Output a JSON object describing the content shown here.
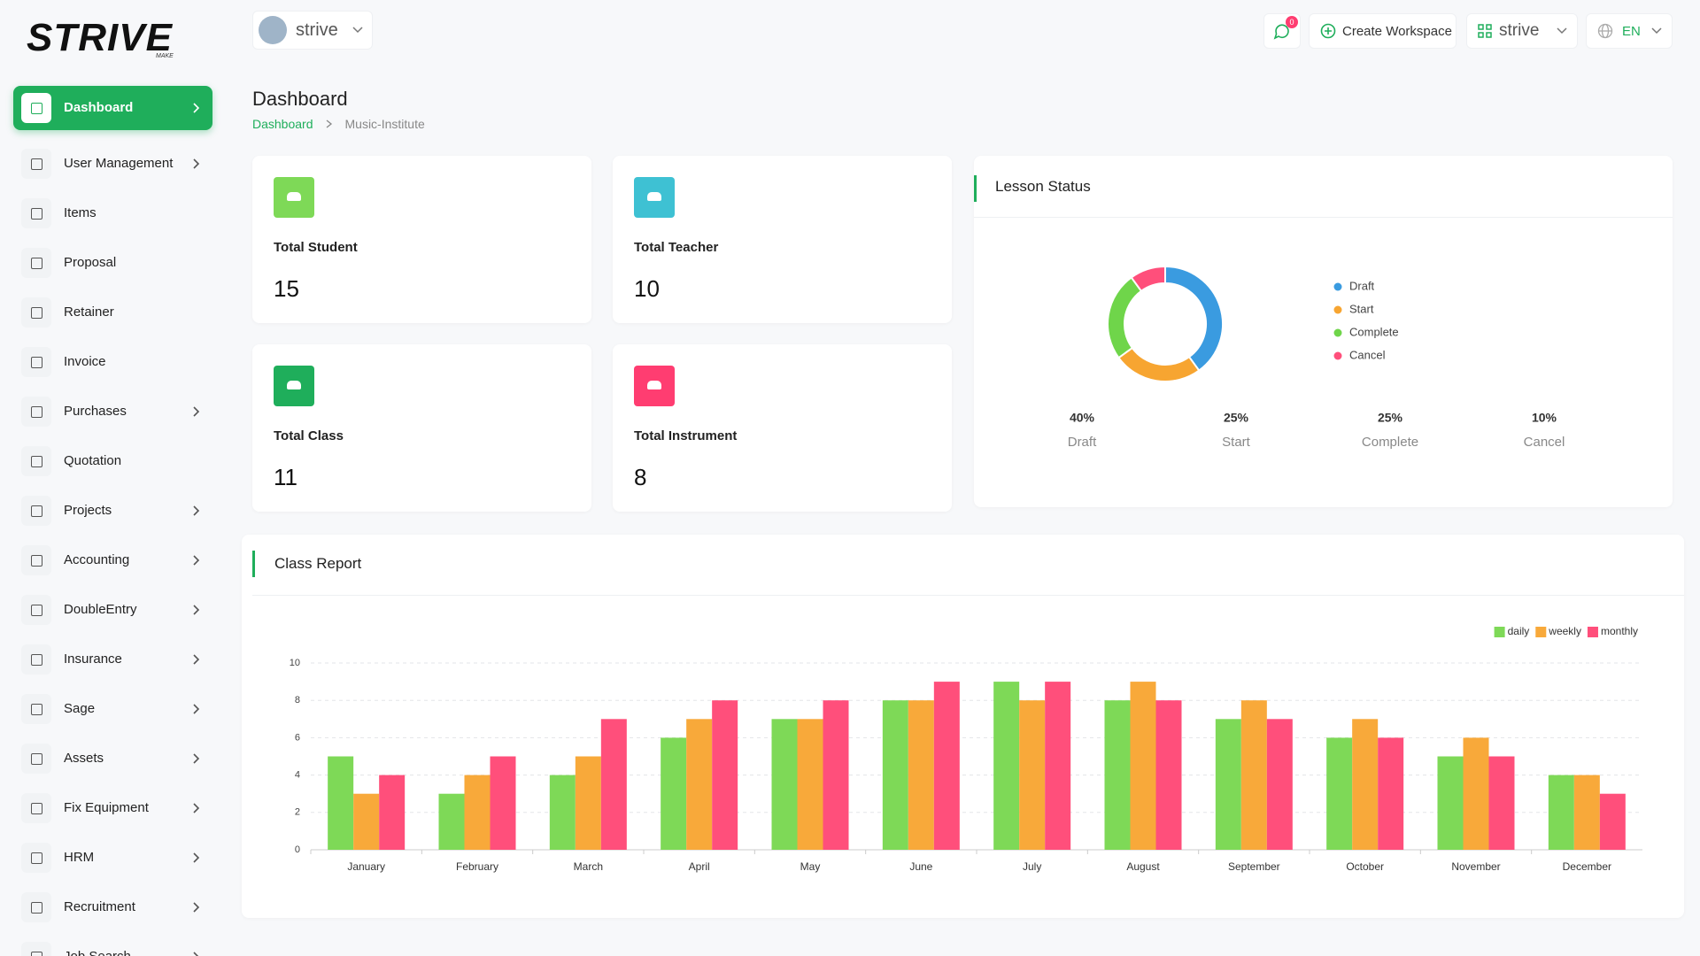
{
  "brand": {
    "logo": "STRIVE",
    "tagline": "MAKE"
  },
  "header": {
    "workspace": "strive",
    "notifications": 0,
    "create_workspace": "Create Workspace",
    "workspace_menu": "strive",
    "language": "EN"
  },
  "sidebar": {
    "items": [
      {
        "label": "Dashboard",
        "active": true,
        "submenu": true
      },
      {
        "label": "User Management",
        "submenu": true
      },
      {
        "label": "Items",
        "submenu": false
      },
      {
        "label": "Proposal",
        "submenu": false
      },
      {
        "label": "Retainer",
        "submenu": false
      },
      {
        "label": "Invoice",
        "submenu": false
      },
      {
        "label": "Purchases",
        "submenu": true
      },
      {
        "label": "Quotation",
        "submenu": false
      },
      {
        "label": "Projects",
        "submenu": true
      },
      {
        "label": "Accounting",
        "submenu": true
      },
      {
        "label": "DoubleEntry",
        "submenu": true
      },
      {
        "label": "Insurance",
        "submenu": true
      },
      {
        "label": "Sage",
        "submenu": true
      },
      {
        "label": "Assets",
        "submenu": true
      },
      {
        "label": "Fix Equipment",
        "submenu": true
      },
      {
        "label": "HRM",
        "submenu": true
      },
      {
        "label": "Recruitment",
        "submenu": true
      },
      {
        "label": "Job Search",
        "submenu": true
      }
    ]
  },
  "page": {
    "title": "Dashboard",
    "breadcrumb": [
      "Dashboard",
      "Music-Institute"
    ]
  },
  "cards": [
    {
      "label": "Total Student",
      "value": 15,
      "color": "#7ed957"
    },
    {
      "label": "Total Teacher",
      "value": 10,
      "color": "#3ec1d3"
    },
    {
      "label": "Total Class",
      "value": 11,
      "color": "#1fae5b"
    },
    {
      "label": "Total Instrument",
      "value": 8,
      "color": "#ff3d71"
    }
  ],
  "chart_data": [
    {
      "type": "donut",
      "title": "Lesson Status",
      "categories": [
        "Draft",
        "Start",
        "Complete",
        "Cancel"
      ],
      "values": [
        40,
        25,
        25,
        10
      ],
      "value_labels": [
        "40%",
        "25%",
        "25%",
        "10%"
      ],
      "colors": [
        "#3a9be0",
        "#f7a531",
        "#6fd54a",
        "#ff4f7b"
      ]
    },
    {
      "type": "bar",
      "title": "Class Report",
      "categories": [
        "January",
        "February",
        "March",
        "April",
        "May",
        "June",
        "July",
        "August",
        "September",
        "October",
        "November",
        "December"
      ],
      "series": [
        {
          "name": "daily",
          "color": "#7ed957",
          "values": [
            5,
            3,
            4,
            6,
            7,
            8,
            9,
            8,
            7,
            6,
            5,
            4
          ]
        },
        {
          "name": "weekly",
          "color": "#f8a93a",
          "values": [
            3,
            4,
            5,
            7,
            7,
            8,
            8,
            9,
            8,
            7,
            6,
            4
          ]
        },
        {
          "name": "monthly",
          "color": "#ff4f7b",
          "values": [
            4,
            5,
            7,
            8,
            8,
            9,
            9,
            8,
            7,
            6,
            5,
            3
          ]
        }
      ],
      "ylim": [
        0,
        10
      ],
      "yticks": [
        0,
        2,
        4,
        6,
        8,
        10
      ],
      "grid": true,
      "legend": "top-right"
    }
  ]
}
